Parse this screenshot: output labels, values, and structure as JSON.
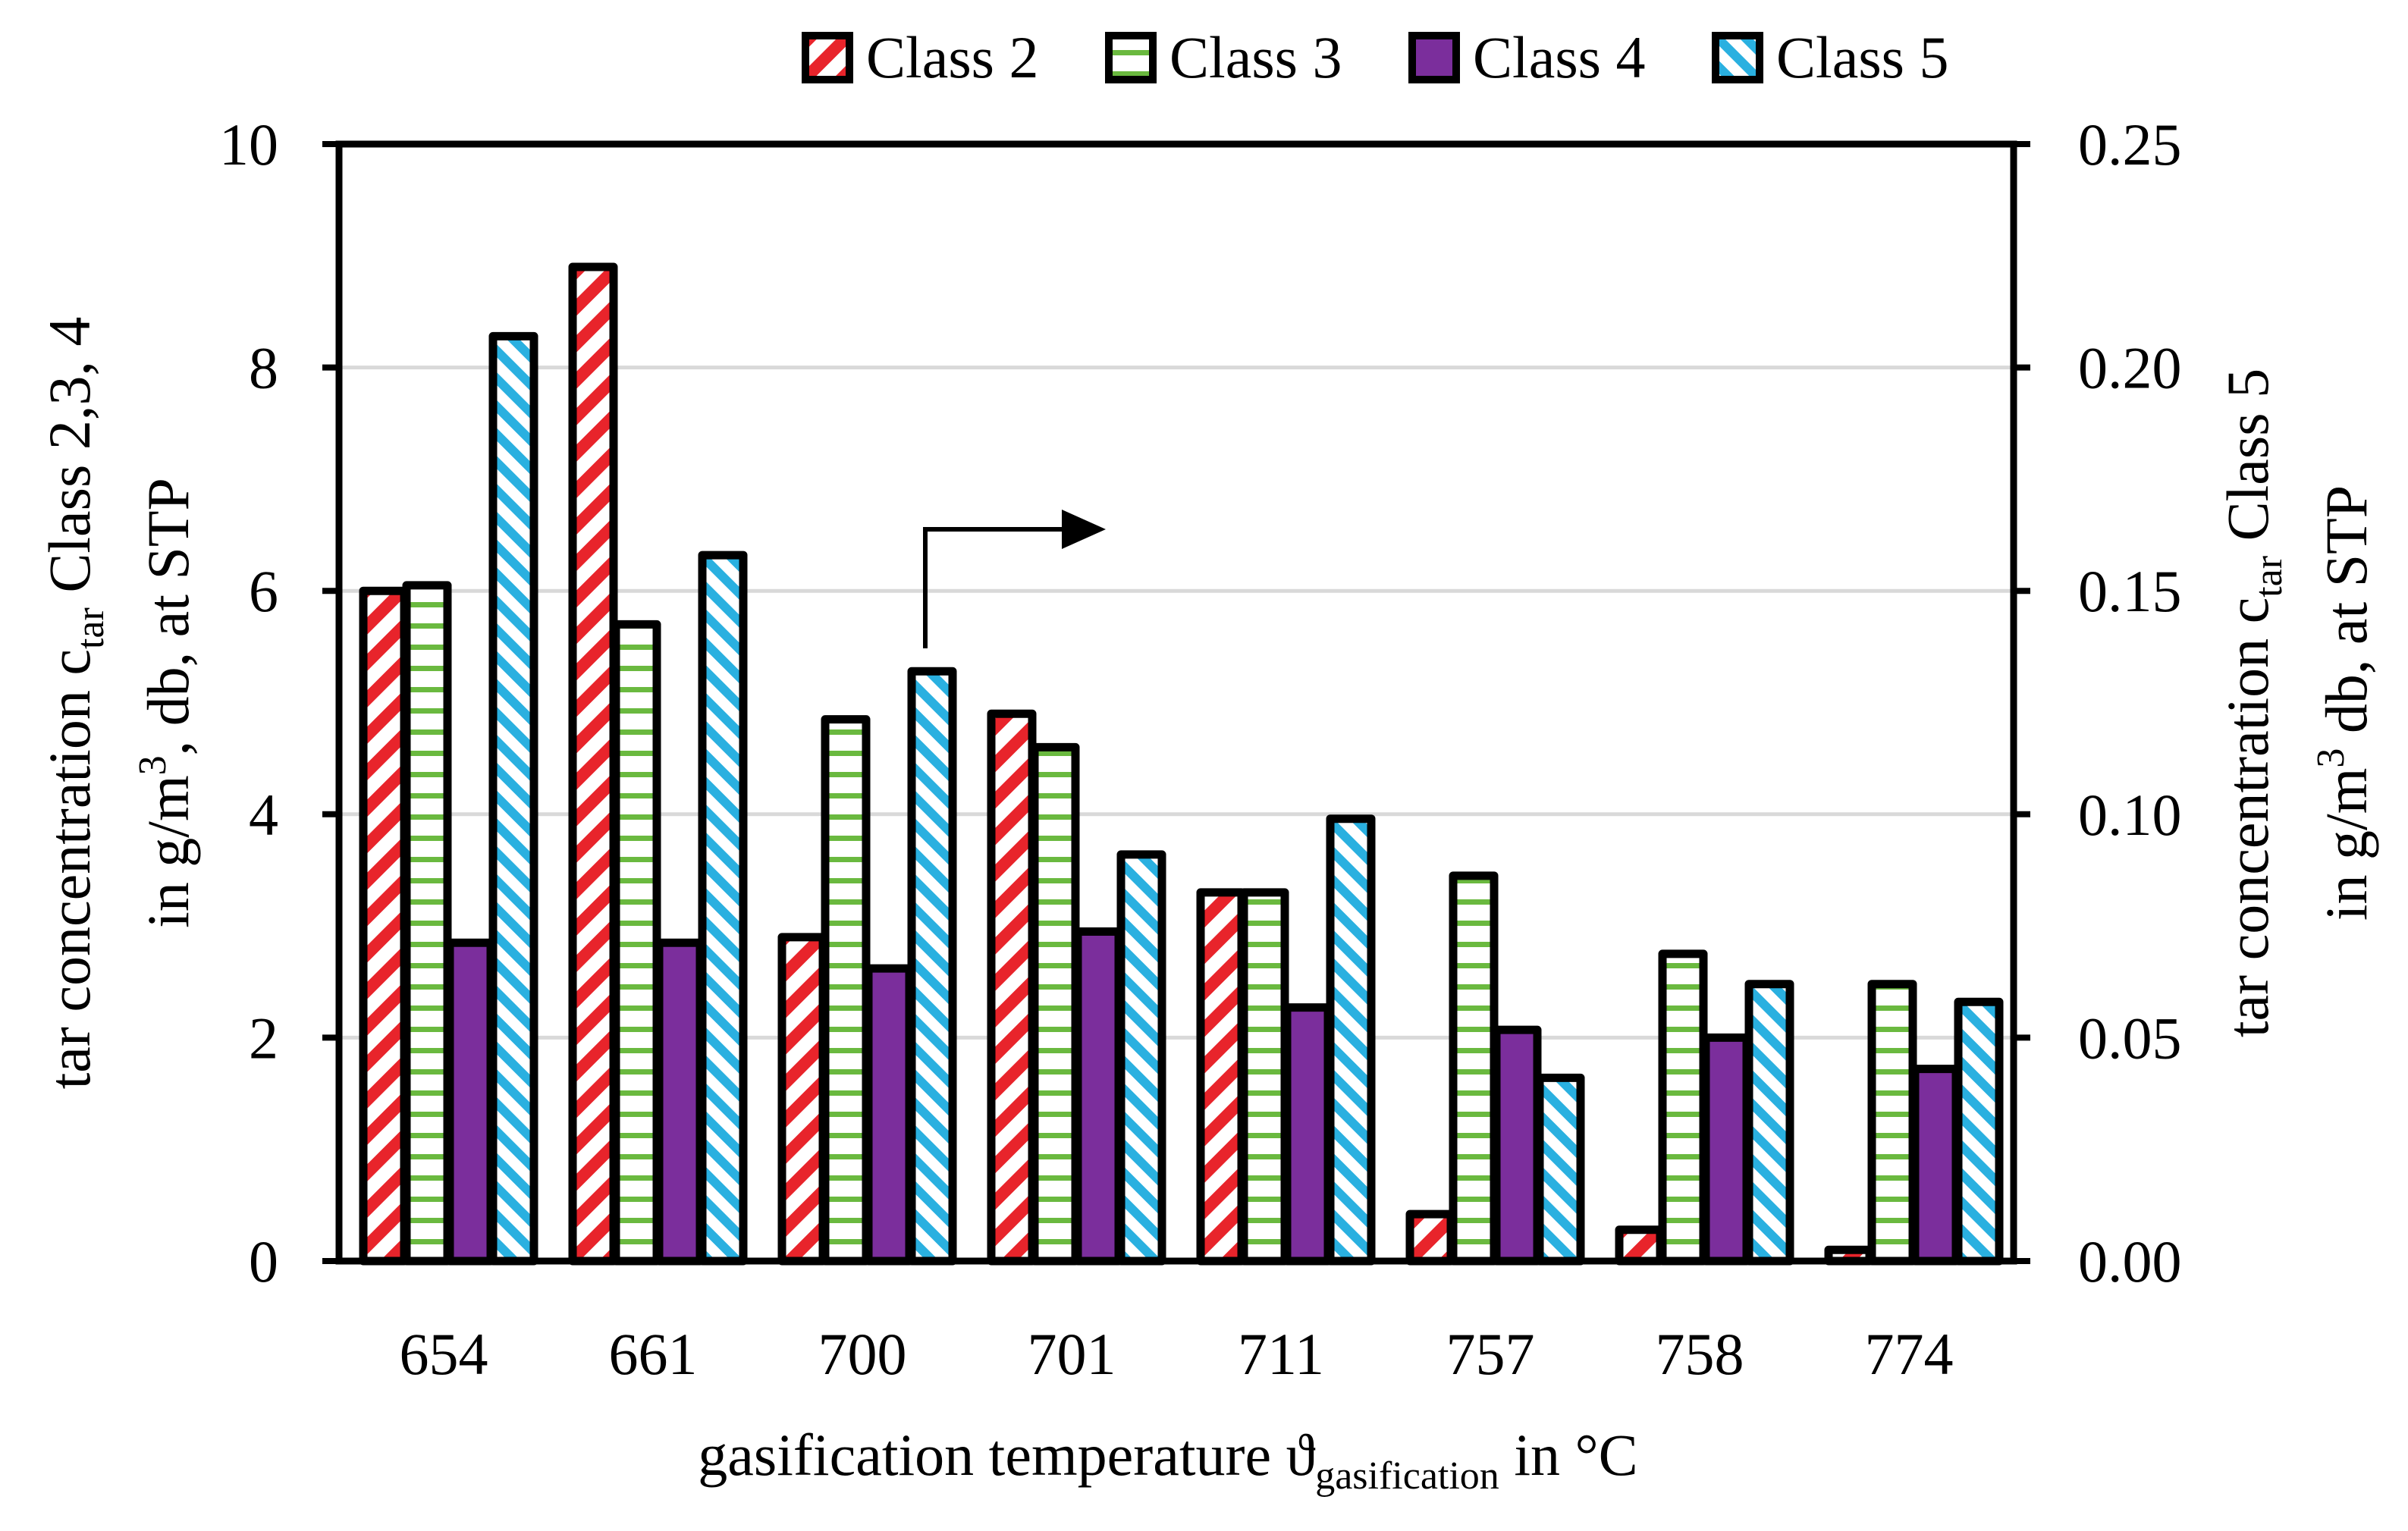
{
  "chart_data": {
    "type": "bar",
    "categories": [
      "654",
      "661",
      "700",
      "701",
      "711",
      "757",
      "758",
      "774"
    ],
    "series": [
      {
        "name": "Class 2",
        "axis": "left",
        "values": [
          6.0,
          8.9,
          2.9,
          4.9,
          3.3,
          0.42,
          0.28,
          0.1
        ],
        "color": "#e8242b",
        "pattern": "diagonal-stripes"
      },
      {
        "name": "Class 3",
        "axis": "left",
        "values": [
          6.05,
          5.7,
          4.85,
          4.6,
          3.3,
          3.45,
          2.75,
          2.48
        ],
        "color": "#6ab93f",
        "pattern": "horizontal-stripes"
      },
      {
        "name": "Class 4",
        "axis": "left",
        "values": [
          2.85,
          2.85,
          2.62,
          2.95,
          2.27,
          2.07,
          2.0,
          1.72
        ],
        "color": "#7b2e9c",
        "pattern": "solid"
      },
      {
        "name": "Class 5",
        "axis": "right",
        "values": [
          0.207,
          0.158,
          0.132,
          0.091,
          0.099,
          0.041,
          0.062,
          0.058
        ],
        "color": "#2ab0e0",
        "pattern": "diagonal-stripes"
      }
    ],
    "y_left": {
      "min": 0,
      "max": 10,
      "ticks": [
        "0",
        "2",
        "4",
        "6",
        "8",
        "10"
      ]
    },
    "y_right": {
      "min": 0,
      "max": 0.25,
      "ticks": [
        "0.00",
        "0.05",
        "0.10",
        "0.15",
        "0.20",
        "0.25"
      ]
    },
    "xlabel": {
      "main": "gasification temperature ϑ",
      "sub": "gasification",
      "tail": " in °C"
    },
    "ylabel_left": {
      "line1_a": "tar concentration c",
      "line1_sub": "tar",
      "line1_b": " Class 2,3, 4",
      "line2_a": "in g/m",
      "line2_sup": "3",
      "line2_b": ", db, at STP"
    },
    "ylabel_right": {
      "line1_a": "tar concentration c",
      "line1_sub": "tar",
      "line1_b": " Class 5",
      "line2_a": "in g/m",
      "line2_sup": "3",
      "line2_b": " db, at STP"
    },
    "legend": [
      "Class 2",
      "Class 3",
      "Class 4",
      "Class 5"
    ],
    "annotation": "arrow pointing to right axis (Class 5)",
    "grid": true
  }
}
